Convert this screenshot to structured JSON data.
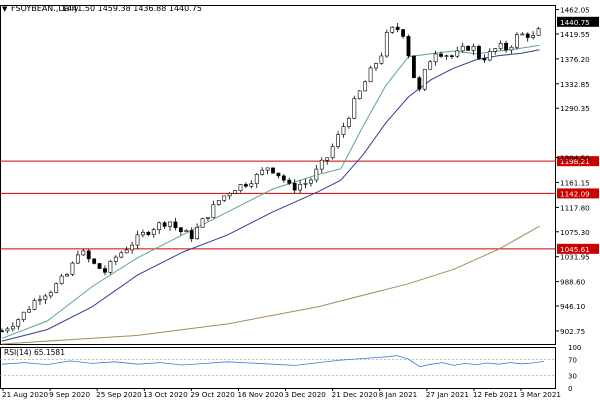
{
  "header": {
    "arrow": "▼",
    "symbol": "FSOYBEAN.,Daily",
    "ohlc": "1441.50 1459.38 1436.88 1440.75"
  },
  "colors": {
    "bull": "#ffffff",
    "bear": "#000000",
    "ma_fast": "#5aa88c",
    "ma_mid": "#3b3b8f",
    "ma_slow": "#a68c5a",
    "hline": "#cc0000",
    "rsi": "#3a7bd5",
    "current_price_bg": "#000000"
  },
  "chart_data": {
    "type": "candlestick",
    "title": "",
    "ylim": [
      880,
      1470
    ],
    "y_ticks": [
      1462.05,
      1419.55,
      1376.2,
      1332.85,
      1290.35,
      1204.5,
      1161.15,
      1117.8,
      1075.3,
      1031.95,
      988.6,
      946.1,
      902.75
    ],
    "x_tick_labels": [
      "21 Aug 2020",
      "9 Sep 2020",
      "25 Sep 2020",
      "13 Oct 2020",
      "29 Oct 2020",
      "16 Nov 2020",
      "3 Dec 2020",
      "21 Dec 2020",
      "8 Jan 2021",
      "27 Jan 2021",
      "12 Feb 2021",
      "3 Mar 2021"
    ],
    "current_price": 1440.75,
    "horizontal_lines": [
      {
        "value": 1198.21,
        "label": "1198.21"
      },
      {
        "value": 1142.09,
        "label": "1142.09"
      },
      {
        "value": 1045.61,
        "label": "1045.61"
      }
    ],
    "close_path": [
      [
        0,
        903
      ],
      [
        8,
        926
      ],
      [
        16,
        962
      ],
      [
        22,
        975
      ],
      [
        30,
        1005
      ],
      [
        34,
        1045
      ],
      [
        40,
        1020
      ],
      [
        46,
        1005
      ],
      [
        50,
        1030
      ],
      [
        56,
        1050
      ],
      [
        62,
        1070
      ],
      [
        68,
        1085
      ],
      [
        74,
        1095
      ],
      [
        78,
        1078
      ],
      [
        84,
        1068
      ],
      [
        90,
        1100
      ],
      [
        96,
        1130
      ],
      [
        102,
        1150
      ],
      [
        108,
        1160
      ],
      [
        114,
        1175
      ],
      [
        118,
        1190
      ],
      [
        124,
        1170
      ],
      [
        128,
        1150
      ],
      [
        132,
        1158
      ],
      [
        136,
        1162
      ],
      [
        140,
        1185
      ],
      [
        144,
        1205
      ],
      [
        148,
        1235
      ],
      [
        152,
        1265
      ],
      [
        156,
        1300
      ],
      [
        160,
        1330
      ],
      [
        164,
        1360
      ],
      [
        168,
        1385
      ],
      [
        170,
        1415
      ],
      [
        174,
        1432
      ],
      [
        178,
        1420
      ],
      [
        182,
        1350
      ],
      [
        185,
        1318
      ],
      [
        188,
        1365
      ],
      [
        192,
        1390
      ],
      [
        196,
        1385
      ],
      [
        200,
        1380
      ],
      [
        204,
        1392
      ],
      [
        208,
        1400
      ],
      [
        212,
        1375
      ],
      [
        216,
        1385
      ],
      [
        220,
        1398
      ],
      [
        224,
        1393
      ],
      [
        228,
        1415
      ],
      [
        232,
        1420
      ],
      [
        236,
        1412
      ],
      [
        240,
        1441
      ]
    ],
    "ma_fast_path": [
      [
        0,
        890
      ],
      [
        20,
        920
      ],
      [
        40,
        980
      ],
      [
        60,
        1030
      ],
      [
        80,
        1070
      ],
      [
        100,
        1110
      ],
      [
        120,
        1150
      ],
      [
        140,
        1175
      ],
      [
        150,
        1185
      ],
      [
        160,
        1260
      ],
      [
        170,
        1330
      ],
      [
        180,
        1380
      ],
      [
        190,
        1385
      ],
      [
        200,
        1390
      ],
      [
        210,
        1385
      ],
      [
        220,
        1390
      ],
      [
        230,
        1395
      ],
      [
        238,
        1400
      ]
    ],
    "ma_mid_path": [
      [
        0,
        885
      ],
      [
        20,
        905
      ],
      [
        40,
        945
      ],
      [
        60,
        1000
      ],
      [
        80,
        1040
      ],
      [
        100,
        1070
      ],
      [
        120,
        1110
      ],
      [
        140,
        1145
      ],
      [
        150,
        1165
      ],
      [
        160,
        1210
      ],
      [
        170,
        1265
      ],
      [
        180,
        1310
      ],
      [
        190,
        1340
      ],
      [
        200,
        1360
      ],
      [
        210,
        1375
      ],
      [
        220,
        1382
      ],
      [
        230,
        1386
      ],
      [
        238,
        1392
      ]
    ],
    "ma_slow_path": [
      [
        0,
        880
      ],
      [
        60,
        895
      ],
      [
        100,
        915
      ],
      [
        140,
        945
      ],
      [
        180,
        985
      ],
      [
        200,
        1010
      ],
      [
        220,
        1045
      ],
      [
        238,
        1085
      ]
    ],
    "rsi": {
      "label": "RSI(14) 65.1581",
      "ylim": [
        0,
        100
      ],
      "ticks": [
        100,
        70,
        30,
        0
      ],
      "series": [
        [
          0,
          58
        ],
        [
          10,
          62
        ],
        [
          20,
          57
        ],
        [
          30,
          66
        ],
        [
          40,
          60
        ],
        [
          50,
          64
        ],
        [
          60,
          58
        ],
        [
          70,
          62
        ],
        [
          80,
          56
        ],
        [
          90,
          60
        ],
        [
          100,
          64
        ],
        [
          110,
          61
        ],
        [
          120,
          58
        ],
        [
          130,
          55
        ],
        [
          140,
          62
        ],
        [
          150,
          68
        ],
        [
          160,
          72
        ],
        [
          170,
          76
        ],
        [
          175,
          79
        ],
        [
          180,
          70
        ],
        [
          185,
          52
        ],
        [
          190,
          58
        ],
        [
          195,
          62
        ],
        [
          200,
          55
        ],
        [
          205,
          60
        ],
        [
          210,
          57
        ],
        [
          215,
          61
        ],
        [
          220,
          58
        ],
        [
          225,
          62
        ],
        [
          230,
          59
        ],
        [
          235,
          61
        ],
        [
          240,
          65
        ]
      ]
    }
  }
}
